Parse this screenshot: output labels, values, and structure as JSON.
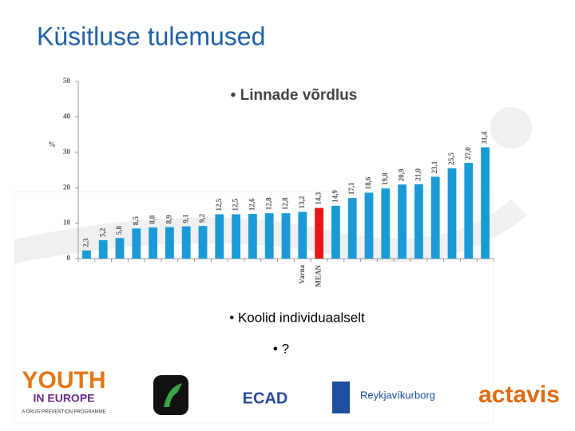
{
  "header": {
    "title": "Küsitluse tulemused"
  },
  "chart_data": {
    "type": "bar",
    "title": "• Linnade võrdlus",
    "y_label": "%",
    "categories": [
      null,
      null,
      null,
      null,
      null,
      null,
      null,
      null,
      null,
      null,
      null,
      null,
      null,
      "Varna",
      "MEAN",
      null,
      null,
      null,
      null,
      null,
      null,
      null,
      null,
      null,
      null
    ],
    "values": [
      2.3,
      5.2,
      5.8,
      8.5,
      8.8,
      8.9,
      9.1,
      9.2,
      12.5,
      12.5,
      12.6,
      12.8,
      12.8,
      13.2,
      14.3,
      14.9,
      17.1,
      18.6,
      19.8,
      20.9,
      21.0,
      23.1,
      25.5,
      27.0,
      31.4
    ],
    "value_labels": [
      "2,3",
      "5,2",
      "5,8",
      "8,5",
      "8,8",
      "8,9",
      "9,1",
      "9,2",
      "12,5",
      "12,5",
      "12,6",
      "12,8",
      "12,8",
      "13,2",
      "14,3",
      "14,9",
      "17,1",
      "18,6",
      "19,8",
      "20,9",
      "21,0",
      "23,1",
      "25,5",
      "27,0",
      "31,4"
    ],
    "colors": [
      "#1a9ad6",
      "#1a9ad6",
      "#1a9ad6",
      "#1a9ad6",
      "#1a9ad6",
      "#1a9ad6",
      "#1a9ad6",
      "#1a9ad6",
      "#1a9ad6",
      "#1a9ad6",
      "#1a9ad6",
      "#1a9ad6",
      "#1a9ad6",
      "#1a9ad6",
      "#e8161b",
      "#1a9ad6",
      "#1a9ad6",
      "#1a9ad6",
      "#1a9ad6",
      "#1a9ad6",
      "#1a9ad6",
      "#1a9ad6",
      "#1a9ad6",
      "#1a9ad6",
      "#1a9ad6"
    ],
    "ylim": [
      0,
      50
    ],
    "yticks": [
      0,
      10,
      20,
      30,
      40,
      50
    ],
    "grid": false
  },
  "bullets": [
    "• Koolid individuaalselt",
    "• ?"
  ],
  "logos": [
    "YOUTH",
    "IN EUROPE",
    "A DRUG PREVENTION PROGRAMME",
    "ECAD",
    "Reykjavíkurborg",
    "actavis"
  ]
}
